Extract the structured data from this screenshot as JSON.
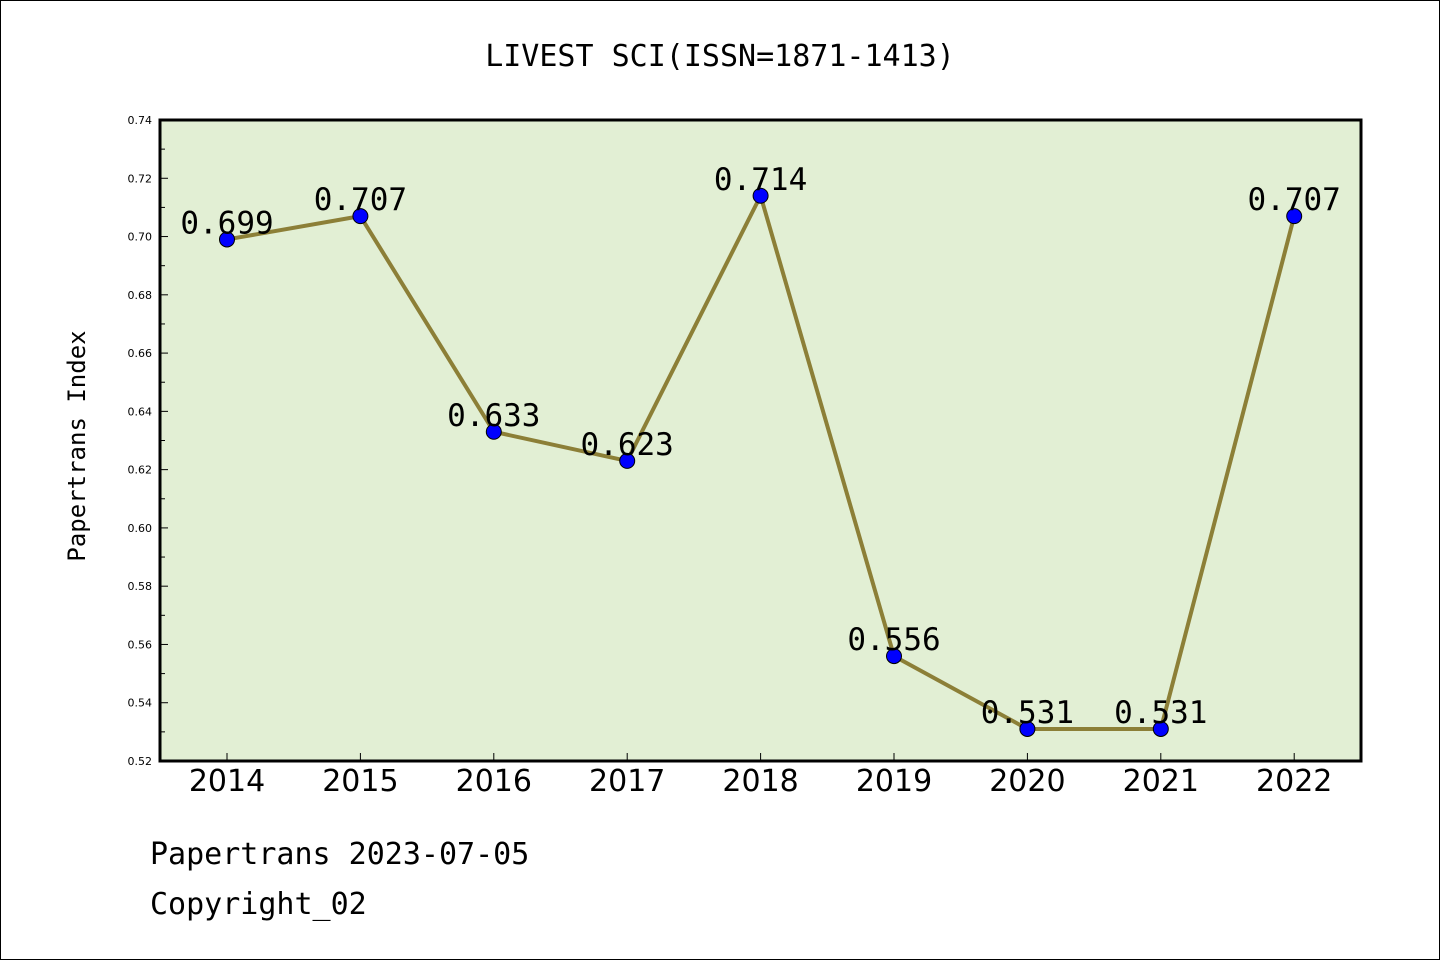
{
  "chart_data": {
    "type": "line",
    "title": "LIVEST SCI(ISSN=1871-1413)",
    "xlabel": "",
    "ylabel": "Papertrans Index",
    "categories": [
      "2014",
      "2015",
      "2016",
      "2017",
      "2018",
      "2019",
      "2020",
      "2021",
      "2022"
    ],
    "series": [
      {
        "values": [
          0.699,
          0.707,
          0.633,
          0.623,
          0.714,
          0.556,
          0.531,
          0.531,
          0.707
        ],
        "data_labels": [
          "0.699",
          "0.707",
          "0.633",
          "0.623",
          "0.714",
          "0.556",
          "0.531",
          "0.531",
          "0.707"
        ]
      }
    ],
    "ylim": [
      0.52,
      0.74
    ],
    "yticks": [
      "0.52",
      "0.54",
      "0.56",
      "0.58",
      "0.60",
      "0.62",
      "0.64",
      "0.66",
      "0.68",
      "0.70",
      "0.72",
      "0.74"
    ],
    "grid": false,
    "colors": {
      "plot_background": "#e2efd4",
      "line": "#8c7f37",
      "marker": "#0000ff"
    }
  },
  "footer": {
    "source": "Papertrans 2023-07-05",
    "copyright": "Copyright_02"
  }
}
